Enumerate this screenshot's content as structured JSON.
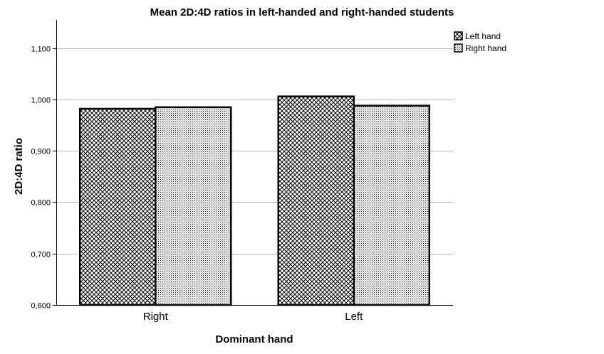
{
  "chart_data": {
    "type": "bar",
    "title": "Mean 2D:4D ratios in left-handed and right-handed students",
    "xlabel": "Dominant hand",
    "ylabel": "2D:4D ratio",
    "categories": [
      "Right",
      "Left"
    ],
    "series": [
      {
        "name": "Left hand",
        "values": [
          0.982,
          1.006
        ],
        "pattern": "crosshatch"
      },
      {
        "name": "Right hand",
        "values": [
          0.985,
          0.988
        ],
        "pattern": "dots"
      }
    ],
    "ylim": [
      0.6,
      1.155
    ],
    "yticks": [
      0.6,
      0.7,
      0.8,
      0.9,
      1.0,
      1.1
    ],
    "ytick_labels": [
      "0,600",
      "0,700",
      "0,800",
      "0,900",
      "1,000",
      "1,100"
    ],
    "grid": true,
    "legend_position": "top-right",
    "colors": {
      "gridline": "#b4b4b4",
      "bar_outline": "#000000",
      "background": "#ffffff"
    }
  }
}
